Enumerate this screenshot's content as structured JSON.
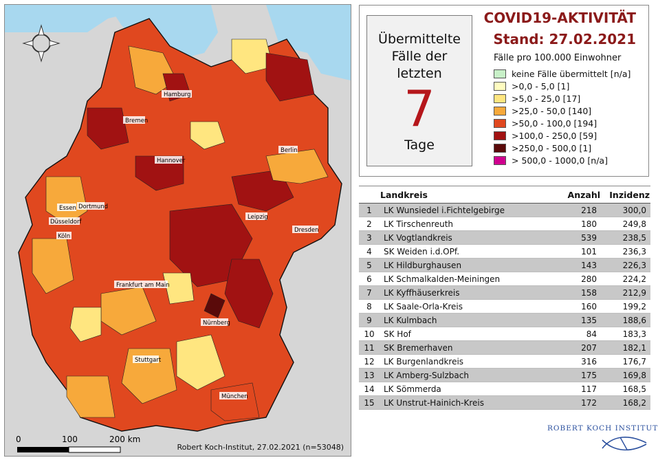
{
  "map": {
    "credit": "Robert Koch-Institut, 27.02.2021 (n=53048)",
    "scale": {
      "labels": [
        "0",
        "100",
        "200 km"
      ]
    },
    "compass_icon": "compass-rose-icon",
    "cities": [
      "Hamburg",
      "Bremen",
      "Berlin",
      "Hannover",
      "Essen",
      "Dortmund",
      "Düsseldorf",
      "Köln",
      "Leipzig",
      "Dresden",
      "Frankfurt am Main",
      "Nürnberg",
      "Stuttgart",
      "München"
    ],
    "colors": {
      "sea": "#a8d8ef",
      "neighbor": "#d6d6d6",
      "border": "#111111"
    }
  },
  "legend": {
    "days_top": "Übermittelte Fälle der letzten",
    "days_number": "7",
    "days_bottom": "Tage",
    "title_line1": "COVID19-AKTIVITÄT",
    "title_line2": "Stand: 27.02.2021",
    "subtitle": "Fälle pro 100.000 Einwohner",
    "items": [
      {
        "label": "keine Fälle übermittelt [n/a]",
        "color": "#c8f0c8"
      },
      {
        "label": ">0,0 - 5,0 [1]",
        "color": "#fffcc0"
      },
      {
        "label": ">5,0 - 25,0 [17]",
        "color": "#ffe680"
      },
      {
        "label": ">25,0 - 50,0 [140]",
        "color": "#f7a93b"
      },
      {
        "label": ">50,0 - 100,0 [194]",
        "color": "#e0481f"
      },
      {
        "label": ">100,0 - 250,0 [59]",
        "color": "#a11212"
      },
      {
        "label": ">250,0 - 500,0 [1]",
        "color": "#5a0a0a"
      },
      {
        "label": "> 500,0 - 1000,0 [n/a]",
        "color": "#d0008f"
      }
    ]
  },
  "table": {
    "headers": {
      "landkreis": "Landkreis",
      "anzahl": "Anzahl",
      "inzidenz": "Inzidenz"
    },
    "rows": [
      {
        "rank": "1",
        "name": "LK Wunsiedel i.Fichtelgebirge",
        "anzahl": "218",
        "inzidenz": "300,0"
      },
      {
        "rank": "2",
        "name": "LK Tirschenreuth",
        "anzahl": "180",
        "inzidenz": "249,8"
      },
      {
        "rank": "3",
        "name": "LK Vogtlandkreis",
        "anzahl": "539",
        "inzidenz": "238,5"
      },
      {
        "rank": "4",
        "name": "SK Weiden i.d.OPf.",
        "anzahl": "101",
        "inzidenz": "236,3"
      },
      {
        "rank": "5",
        "name": "LK Hildburghausen",
        "anzahl": "143",
        "inzidenz": "226,3"
      },
      {
        "rank": "6",
        "name": "LK Schmalkalden-Meiningen",
        "anzahl": "280",
        "inzidenz": "224,2"
      },
      {
        "rank": "7",
        "name": "LK Kyffhäuserkreis",
        "anzahl": "158",
        "inzidenz": "212,9"
      },
      {
        "rank": "8",
        "name": "LK Saale-Orla-Kreis",
        "anzahl": "160",
        "inzidenz": "199,2"
      },
      {
        "rank": "9",
        "name": "LK Kulmbach",
        "anzahl": "135",
        "inzidenz": "188,6"
      },
      {
        "rank": "10",
        "name": "SK Hof",
        "anzahl": "84",
        "inzidenz": "183,3"
      },
      {
        "rank": "11",
        "name": "SK Bremerhaven",
        "anzahl": "207",
        "inzidenz": "182,1"
      },
      {
        "rank": "12",
        "name": "LK Burgenlandkreis",
        "anzahl": "316",
        "inzidenz": "176,7"
      },
      {
        "rank": "13",
        "name": "LK Amberg-Sulzbach",
        "anzahl": "175",
        "inzidenz": "169,8"
      },
      {
        "rank": "14",
        "name": "LK Sömmerda",
        "anzahl": "117",
        "inzidenz": "168,5"
      },
      {
        "rank": "15",
        "name": "LK Unstrut-Hainich-Kreis",
        "anzahl": "172",
        "inzidenz": "168,2"
      }
    ]
  },
  "branding": {
    "institute": "ROBERT KOCH INSTITUT",
    "logo_icon": "rki-logo-icon"
  }
}
